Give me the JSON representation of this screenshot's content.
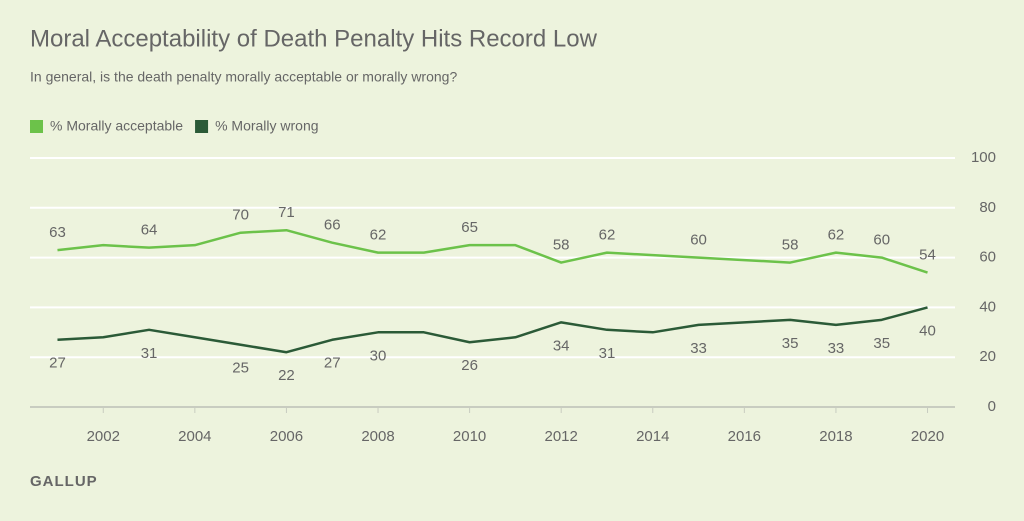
{
  "chart_data": {
    "type": "line",
    "title": "Moral Acceptability of Death Penalty Hits Record Low",
    "subtitle": "In general, is the death penalty morally acceptable or morally wrong?",
    "source": "GALLUP",
    "x": [
      2001,
      2002,
      2003,
      2004,
      2005,
      2006,
      2007,
      2008,
      2009,
      2010,
      2011,
      2012,
      2013,
      2014,
      2015,
      2016,
      2017,
      2018,
      2019,
      2020
    ],
    "series": [
      {
        "name": "% Morally acceptable",
        "color": "#6cc24a",
        "values": [
          63,
          65,
          64,
          65,
          70,
          71,
          66,
          62,
          62,
          65,
          65,
          58,
          62,
          61,
          60,
          59,
          58,
          62,
          60,
          54
        ],
        "value_labels": [
          63,
          null,
          64,
          null,
          70,
          71,
          66,
          62,
          null,
          65,
          null,
          58,
          62,
          null,
          60,
          null,
          58,
          62,
          60,
          54
        ]
      },
      {
        "name": "% Morally wrong",
        "color": "#2b5a37",
        "values": [
          27,
          28,
          31,
          28,
          25,
          22,
          27,
          30,
          30,
          26,
          28,
          34,
          31,
          30,
          33,
          34,
          35,
          33,
          35,
          40
        ],
        "value_labels": [
          27,
          null,
          31,
          null,
          25,
          22,
          27,
          30,
          null,
          26,
          null,
          34,
          31,
          null,
          33,
          null,
          35,
          33,
          35,
          40
        ]
      }
    ],
    "xlim": [
      2000.4,
      2020.6
    ],
    "xticks": [
      2002,
      2004,
      2006,
      2008,
      2010,
      2012,
      2014,
      2016,
      2018,
      2020
    ],
    "ylim": [
      0,
      100
    ],
    "yticks": [
      0,
      20,
      40,
      60,
      80,
      100
    ],
    "grid": true,
    "legend": "top-left"
  }
}
